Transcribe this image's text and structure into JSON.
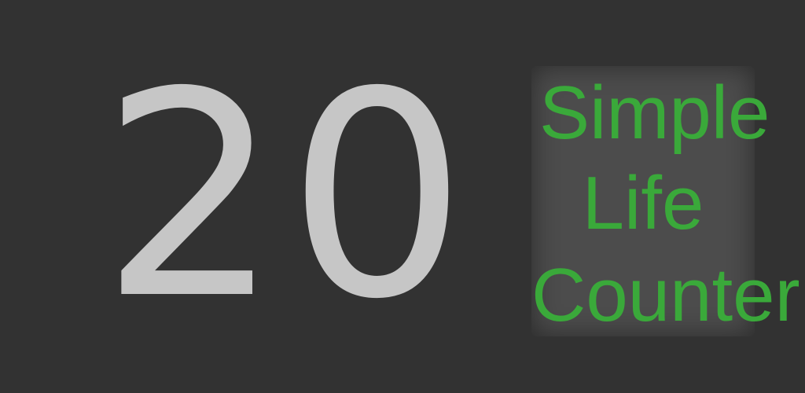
{
  "counter": {
    "life_total": "20"
  },
  "title_card": {
    "lines": [
      "Simple",
      "Life",
      "Counter"
    ],
    "text_color": "#3aa93a",
    "card_color": "#4c4c4c"
  },
  "colors": {
    "background": "#323232",
    "life_total": "#c6c6c6"
  }
}
